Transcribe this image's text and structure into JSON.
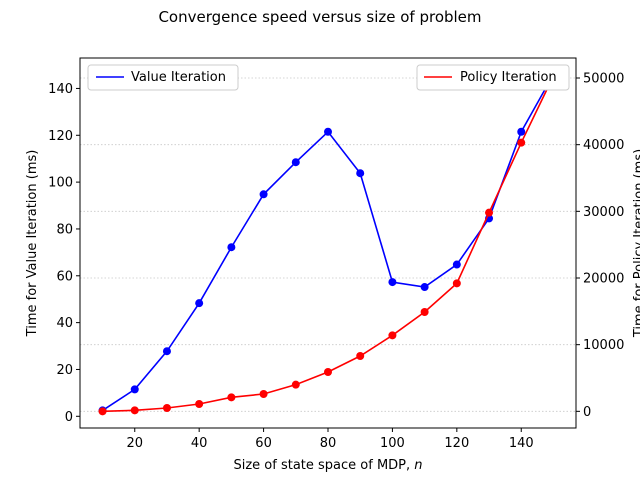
{
  "chart_data": {
    "type": "line",
    "title": "Convergence speed versus size of problem",
    "xlabel": "Size of state space of MDP, ",
    "xlabel_var": "n",
    "ylabel_left": "Time for Value Iteration  (ms)",
    "ylabel_right": "Time for Policy Iteration (ms)",
    "x": [
      10,
      20,
      30,
      40,
      50,
      60,
      70,
      80,
      90,
      100,
      110,
      120,
      130,
      140,
      150
    ],
    "xlim": [
      3,
      157
    ],
    "xticks": [
      20,
      40,
      60,
      80,
      100,
      120,
      140
    ],
    "ylim_left": [
      -5,
      153
    ],
    "yticks_left": [
      0,
      20,
      40,
      60,
      80,
      100,
      120,
      140
    ],
    "ylim_right": [
      -2500,
      53000
    ],
    "yticks_right": [
      0,
      10000,
      20000,
      30000,
      40000,
      50000
    ],
    "grid": "horizontal dotted",
    "series": [
      {
        "name": "Value Iteration",
        "axis": "left",
        "color": "#0000ff",
        "legend": "top-left",
        "values": [
          2.5,
          11.5,
          27.8,
          48.3,
          72.2,
          94.8,
          108.5,
          121.5,
          103.8,
          57.3,
          55.2,
          64.8,
          84.5,
          121.5,
          146.0
        ]
      },
      {
        "name": "Policy Iteration",
        "axis": "right",
        "color": "#ff0000",
        "legend": "top-right",
        "values": [
          0,
          150,
          500,
          1100,
          2100,
          2600,
          4000,
          5900,
          8300,
          11400,
          14900,
          19200,
          29800,
          40300,
          50300
        ]
      }
    ]
  }
}
